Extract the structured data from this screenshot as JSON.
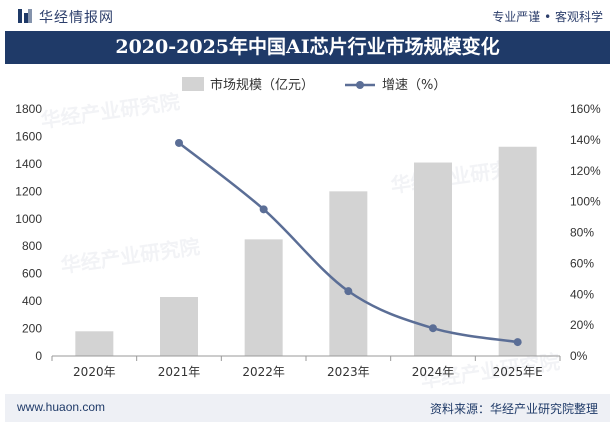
{
  "header": {
    "brand_name": "华经情报网",
    "slogan": "专业严谨 • 客观科学"
  },
  "footer": {
    "url": "www.huaon.com",
    "source": "资料来源：华经产业研究院整理"
  },
  "colors": {
    "title_bg": "#1f3a68",
    "bar": "#d3d3d3",
    "line": "#5b6e96"
  },
  "chart_data": {
    "type": "bar",
    "title": "2020-2025年中国AI芯片行业市场规模变化",
    "categories": [
      "2020年",
      "2021年",
      "2022年",
      "2023年",
      "2024年",
      "2025年E"
    ],
    "series": [
      {
        "name": "市场规模（亿元）",
        "kind": "bar",
        "axis": "left",
        "values": [
          180,
          430,
          850,
          1200,
          1410,
          1525
        ]
      },
      {
        "name": "增速（%）",
        "kind": "line",
        "axis": "right",
        "values": [
          null,
          138,
          95,
          42,
          18,
          9
        ]
      }
    ],
    "ylim_left": [
      0,
      1800
    ],
    "yticks_left": [
      "0",
      "200",
      "400",
      "600",
      "800",
      "1000",
      "1200",
      "1400",
      "1600",
      "1800"
    ],
    "ylim_right": [
      0,
      160
    ],
    "yticks_right": [
      "0%",
      "20%",
      "40%",
      "60%",
      "80%",
      "100%",
      "120%",
      "140%",
      "160%"
    ],
    "legend_position": "top-center",
    "grid": false
  }
}
